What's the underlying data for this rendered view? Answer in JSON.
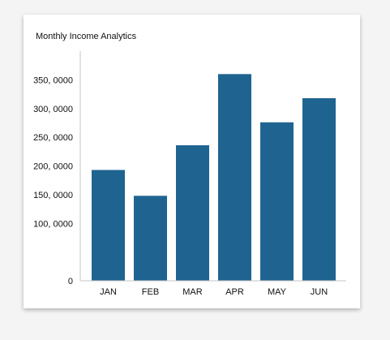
{
  "chart_data": {
    "type": "bar",
    "title": "Monthly Income Analytics",
    "categories": [
      "JAN",
      "FEB",
      "MAR",
      "APR",
      "MAY",
      "JUN"
    ],
    "values": [
      193000,
      148000,
      236000,
      360000,
      276000,
      318000
    ],
    "ylim": [
      0,
      400000
    ],
    "yticks": [
      0,
      100000,
      150000,
      200000,
      250000,
      300000,
      350000
    ],
    "ytick_labels": [
      "0",
      "100, 0000",
      "150, 0000",
      "200, 0000",
      "250, 0000",
      "300, 0000",
      "350, 0000"
    ],
    "xlabel": "",
    "ylabel": "",
    "grid": false,
    "bar_color": "#1f6491",
    "axis_color": "#c4c4c4"
  }
}
